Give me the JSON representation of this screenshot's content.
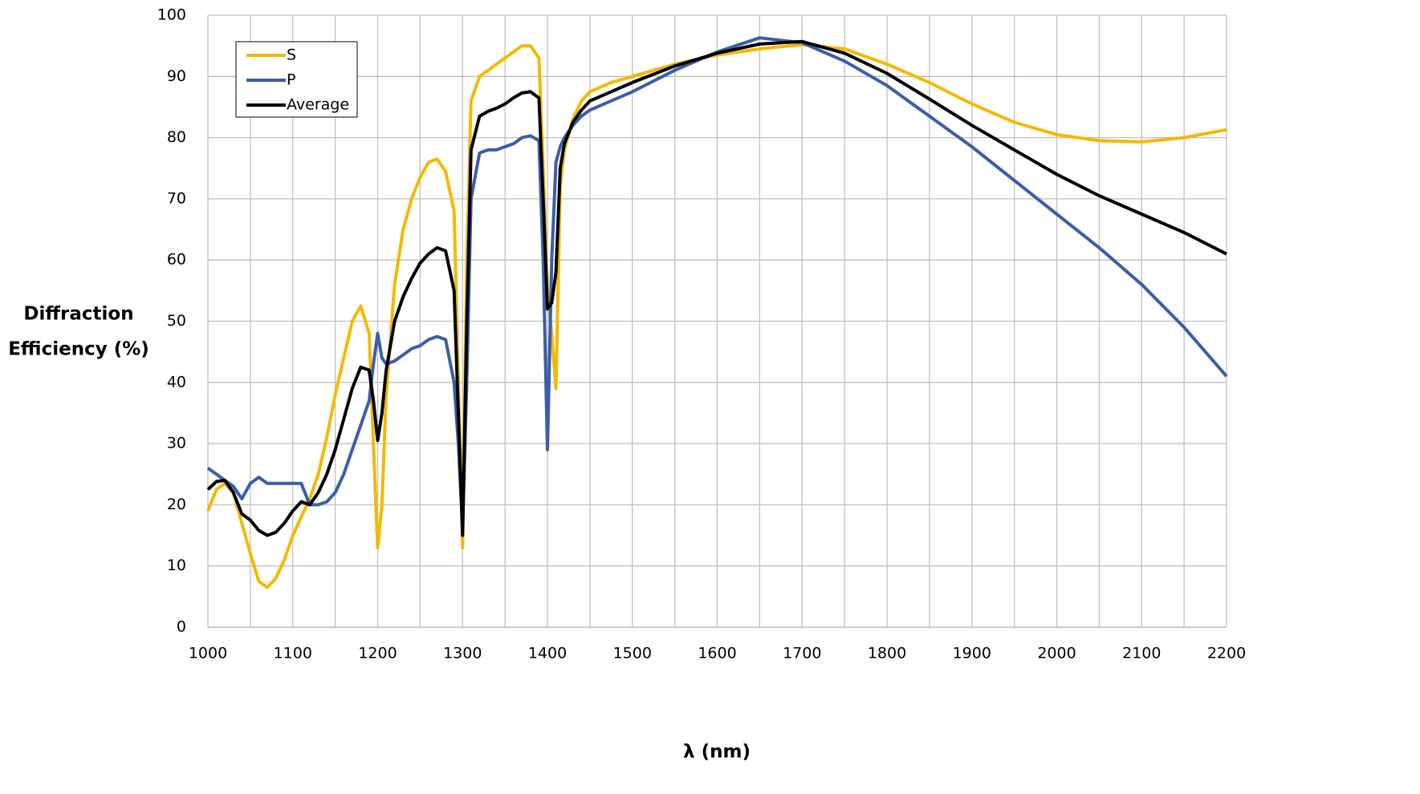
{
  "chart_data": {
    "type": "line",
    "x_label": "λ (nm)",
    "y_label": [
      "Diffraction",
      "Efficiency (%)"
    ],
    "x": [
      1000,
      1010,
      1020,
      1030,
      1040,
      1050,
      1060,
      1070,
      1080,
      1090,
      1100,
      1110,
      1120,
      1130,
      1140,
      1150,
      1160,
      1170,
      1180,
      1190,
      1195,
      1200,
      1205,
      1210,
      1220,
      1230,
      1240,
      1250,
      1260,
      1270,
      1280,
      1290,
      1295,
      1300,
      1305,
      1310,
      1320,
      1330,
      1340,
      1350,
      1360,
      1370,
      1380,
      1390,
      1395,
      1400,
      1405,
      1410,
      1415,
      1420,
      1430,
      1440,
      1450,
      1475,
      1500,
      1550,
      1600,
      1650,
      1700,
      1750,
      1800,
      1850,
      1900,
      1950,
      2000,
      2050,
      2100,
      2150,
      2200
    ],
    "series": [
      {
        "name": "S",
        "color": "#f5b800",
        "values": [
          19,
          22.5,
          23.5,
          22,
          17,
          12,
          7.5,
          6.5,
          8,
          11,
          15,
          18,
          21,
          25,
          31,
          38,
          44,
          50,
          52.5,
          48,
          30,
          13,
          20,
          38,
          56,
          65,
          70,
          73.5,
          76,
          76.5,
          74.5,
          68,
          40,
          13,
          60,
          86,
          90,
          91,
          92,
          93,
          94,
          95,
          95,
          93,
          75,
          55,
          48,
          39,
          72,
          78,
          83,
          86,
          87.5,
          89,
          90,
          92,
          93.5,
          94.5,
          95.2,
          94.5,
          92,
          89,
          85.5,
          82.5,
          80.5,
          79.5,
          79.3,
          80,
          81.3
        ]
      },
      {
        "name": "P",
        "color": "#3a5ea8",
        "values": [
          26,
          25,
          24,
          23,
          21,
          23.5,
          24.5,
          23.5,
          23.5,
          23.5,
          23.5,
          23.5,
          20,
          20,
          20.5,
          22,
          25,
          29,
          33,
          37,
          43,
          48,
          44,
          43,
          43.5,
          44.5,
          45.5,
          46,
          47,
          47.5,
          47,
          40,
          30,
          16,
          40,
          70,
          77.5,
          78,
          78,
          78.5,
          79,
          80,
          80.3,
          79.5,
          60,
          29,
          60,
          76,
          78.5,
          80,
          82,
          83.5,
          84.5,
          86,
          87.5,
          91,
          94,
          96.3,
          95.5,
          92.5,
          88.5,
          83.5,
          78.5,
          73,
          67.5,
          62,
          56,
          49,
          41
        ]
      },
      {
        "name": "Average",
        "color": "#000000",
        "values": [
          22.5,
          23.8,
          24,
          22,
          18.5,
          17.5,
          15.8,
          15,
          15.5,
          17,
          19,
          20.5,
          20,
          22,
          25,
          29,
          34,
          39,
          42.5,
          42,
          37,
          30.5,
          35,
          42,
          50,
          54,
          57,
          59.5,
          61,
          62,
          61.5,
          55,
          35,
          15,
          50,
          78,
          83.5,
          84.3,
          84.8,
          85.5,
          86.5,
          87.3,
          87.5,
          86.5,
          70,
          52,
          53,
          58,
          75,
          79,
          82.5,
          84.5,
          86,
          87.5,
          89,
          91.7,
          93.8,
          95.3,
          95.7,
          93.8,
          90.5,
          86.3,
          82,
          78,
          74,
          70.5,
          67.5,
          64.5,
          61
        ]
      }
    ],
    "xlim": [
      1000,
      2200
    ],
    "xticks": [
      1000,
      1100,
      1200,
      1300,
      1400,
      1500,
      1600,
      1700,
      1800,
      1900,
      2000,
      2100,
      2200
    ],
    "ylim": [
      0,
      100
    ],
    "yticks": [
      0,
      10,
      20,
      30,
      40,
      50,
      60,
      70,
      80,
      90,
      100
    ],
    "grid": true,
    "legend": "upper-left"
  }
}
